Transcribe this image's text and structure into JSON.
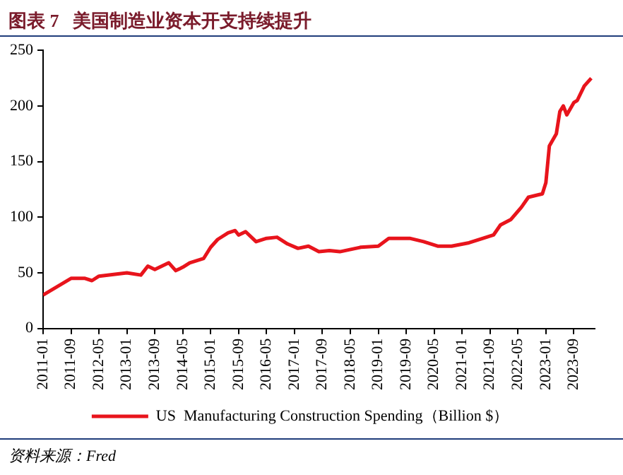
{
  "chart_data": {
    "type": "line",
    "title": "图表 7   美国制造业资本开支持续提升",
    "annotations": [
      "资料来源：Fred"
    ],
    "x": [
      "2011-01",
      "2011-09",
      "2012-01",
      "2012-03",
      "2012-05",
      "2013-01",
      "2013-05",
      "2013-07",
      "2013-09",
      "2014-01",
      "2014-03",
      "2014-05",
      "2014-07",
      "2014-11",
      "2015-01",
      "2015-03",
      "2015-06",
      "2015-08",
      "2015-09",
      "2015-11",
      "2016-02",
      "2016-05",
      "2016-08",
      "2016-11",
      "2017-02",
      "2017-05",
      "2017-08",
      "2017-11",
      "2018-02",
      "2018-08",
      "2019-01",
      "2019-04",
      "2019-10",
      "2020-02",
      "2020-06",
      "2020-10",
      "2021-03",
      "2021-07",
      "2021-10",
      "2021-12",
      "2022-03",
      "2022-06",
      "2022-08",
      "2022-12",
      "2023-01",
      "2023-02",
      "2023-04",
      "2023-05",
      "2023-06",
      "2023-07",
      "2023-09",
      "2023-10",
      "2023-12",
      "2024-02"
    ],
    "series": [
      {
        "name": "US  Manufacturing Construction Spending（Billion $）",
        "color": "#e8141c",
        "values": [
          30,
          45,
          45,
          43,
          47,
          50,
          48,
          56,
          53,
          59,
          52,
          55,
          59,
          63,
          73,
          80,
          86,
          88,
          84,
          87,
          78,
          81,
          82,
          76,
          72,
          74,
          69,
          70,
          69,
          73,
          74,
          81,
          81,
          78,
          74,
          74,
          77,
          81,
          84,
          93,
          98,
          109,
          118,
          121,
          131,
          164,
          175,
          195,
          200,
          192,
          203,
          205,
          218,
          225
        ]
      }
    ],
    "xlim": [
      "2011-01",
      "2024-03"
    ],
    "xticks": [
      "2011-01",
      "2011-09",
      "2012-05",
      "2013-01",
      "2013-09",
      "2014-05",
      "2015-01",
      "2015-09",
      "2016-05",
      "2017-01",
      "2017-09",
      "2018-05",
      "2019-01",
      "2019-09",
      "2020-05",
      "2021-01",
      "2021-09",
      "2022-05",
      "2023-01",
      "2023-09"
    ],
    "ylim": [
      0,
      250
    ],
    "yticks": [
      0,
      50,
      100,
      150,
      200,
      250
    ],
    "grid": false,
    "legend": "bottom",
    "marker": "none",
    "line_style": "solid"
  }
}
